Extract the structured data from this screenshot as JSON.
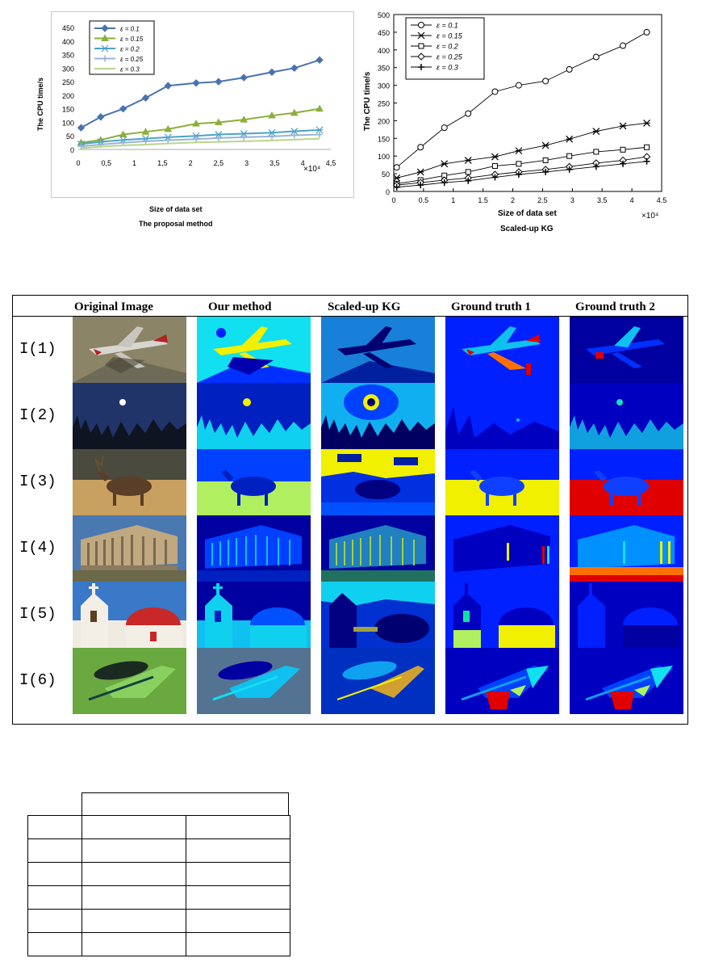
{
  "chart_data": [
    {
      "type": "line",
      "title": "The proposal method",
      "xlabel": "Size of data set",
      "ylabel": "The CPU time/s",
      "x_multiplier": "×10⁴",
      "xlim": [
        0,
        4.5
      ],
      "ylim": [
        0,
        450
      ],
      "x_ticks": [
        "0",
        "0,5",
        "1",
        "1,5",
        "2",
        "2,5",
        "3",
        "3,5",
        "4",
        "4,5"
      ],
      "y_ticks": [
        "0",
        "50",
        "100",
        "150",
        "200",
        "250",
        "300",
        "350",
        "400",
        "450"
      ],
      "legend_position": "top-left",
      "x": [
        0.05,
        0.4,
        0.8,
        1.2,
        1.6,
        2.1,
        2.5,
        2.95,
        3.45,
        3.85,
        4.3
      ],
      "series": [
        {
          "name": "ε = 0.1",
          "color": "#4a72b0",
          "marker": "diamond",
          "values": [
            80,
            120,
            150,
            190,
            235,
            245,
            250,
            265,
            285,
            300,
            330
          ]
        },
        {
          "name": "ε = 0.15",
          "color": "#8caf3a",
          "marker": "triangle",
          "values": [
            25,
            35,
            55,
            65,
            75,
            95,
            100,
            110,
            125,
            135,
            150
          ]
        },
        {
          "name": "ε = 0.2",
          "color": "#4aa3c7",
          "marker": "star",
          "values": [
            20,
            28,
            35,
            40,
            45,
            50,
            55,
            58,
            62,
            67,
            72
          ]
        },
        {
          "name": "ε = 0.25",
          "color": "#98b3d8",
          "marker": "plus",
          "values": [
            12,
            18,
            25,
            30,
            34,
            38,
            42,
            45,
            48,
            52,
            55
          ]
        },
        {
          "name": "ε = 0.3",
          "color": "#b9d58a",
          "marker": "none",
          "values": [
            5,
            10,
            15,
            18,
            22,
            26,
            28,
            30,
            33,
            36,
            40
          ]
        }
      ]
    },
    {
      "type": "line",
      "title": "Scaled-up KG",
      "xlabel": "Size of data set",
      "ylabel": "The CPU time/s",
      "x_multiplier": "×10⁴",
      "xlim": [
        0,
        4.5
      ],
      "ylim": [
        0,
        500
      ],
      "x_ticks": [
        "0",
        "0.5",
        "1",
        "1.5",
        "2",
        "2.5",
        "3",
        "3.5",
        "4",
        "4.5"
      ],
      "y_ticks": [
        "0",
        "50",
        "100",
        "150",
        "200",
        "250",
        "300",
        "350",
        "400",
        "450",
        "500"
      ],
      "legend_position": "top-left",
      "x": [
        0.05,
        0.45,
        0.85,
        1.25,
        1.7,
        2.1,
        2.55,
        2.95,
        3.4,
        3.85,
        4.25
      ],
      "series": [
        {
          "name": "ε = 0.1",
          "color": "#000000",
          "marker": "circle",
          "values": [
            68,
            125,
            180,
            220,
            282,
            300,
            312,
            345,
            380,
            412,
            450
          ]
        },
        {
          "name": "ε = 0.15",
          "color": "#000000",
          "marker": "star",
          "values": [
            38,
            55,
            78,
            88,
            98,
            115,
            130,
            148,
            170,
            185,
            193
          ]
        },
        {
          "name": "ε = 0.2",
          "color": "#000000",
          "marker": "square",
          "values": [
            22,
            32,
            45,
            55,
            72,
            78,
            88,
            100,
            112,
            118,
            125
          ]
        },
        {
          "name": "ε = 0.25",
          "color": "#000000",
          "marker": "diamond",
          "values": [
            18,
            25,
            32,
            38,
            48,
            55,
            62,
            70,
            80,
            88,
            98
          ]
        },
        {
          "name": "ε = 0.3",
          "color": "#000000",
          "marker": "plus",
          "values": [
            12,
            18,
            25,
            30,
            40,
            48,
            55,
            62,
            70,
            78,
            85
          ]
        }
      ]
    }
  ],
  "figure": {
    "columns": [
      "Original Image",
      "Our method",
      "Scaled-up KG",
      "Ground truth 1",
      "Ground truth 2"
    ],
    "rows": [
      "I(1)",
      "I(2)",
      "I(3)",
      "I(4)",
      "I(5)",
      "I(6)"
    ]
  },
  "table": {
    "rows": 7,
    "cols": 3
  },
  "colors": {
    "jet_dark": "#00008f",
    "jet_blue": "#0020ff",
    "jet_cyan": "#10e0f0",
    "jet_yellow": "#f0f000",
    "jet_red": "#e00000",
    "jet_orange": "#ff7000"
  }
}
